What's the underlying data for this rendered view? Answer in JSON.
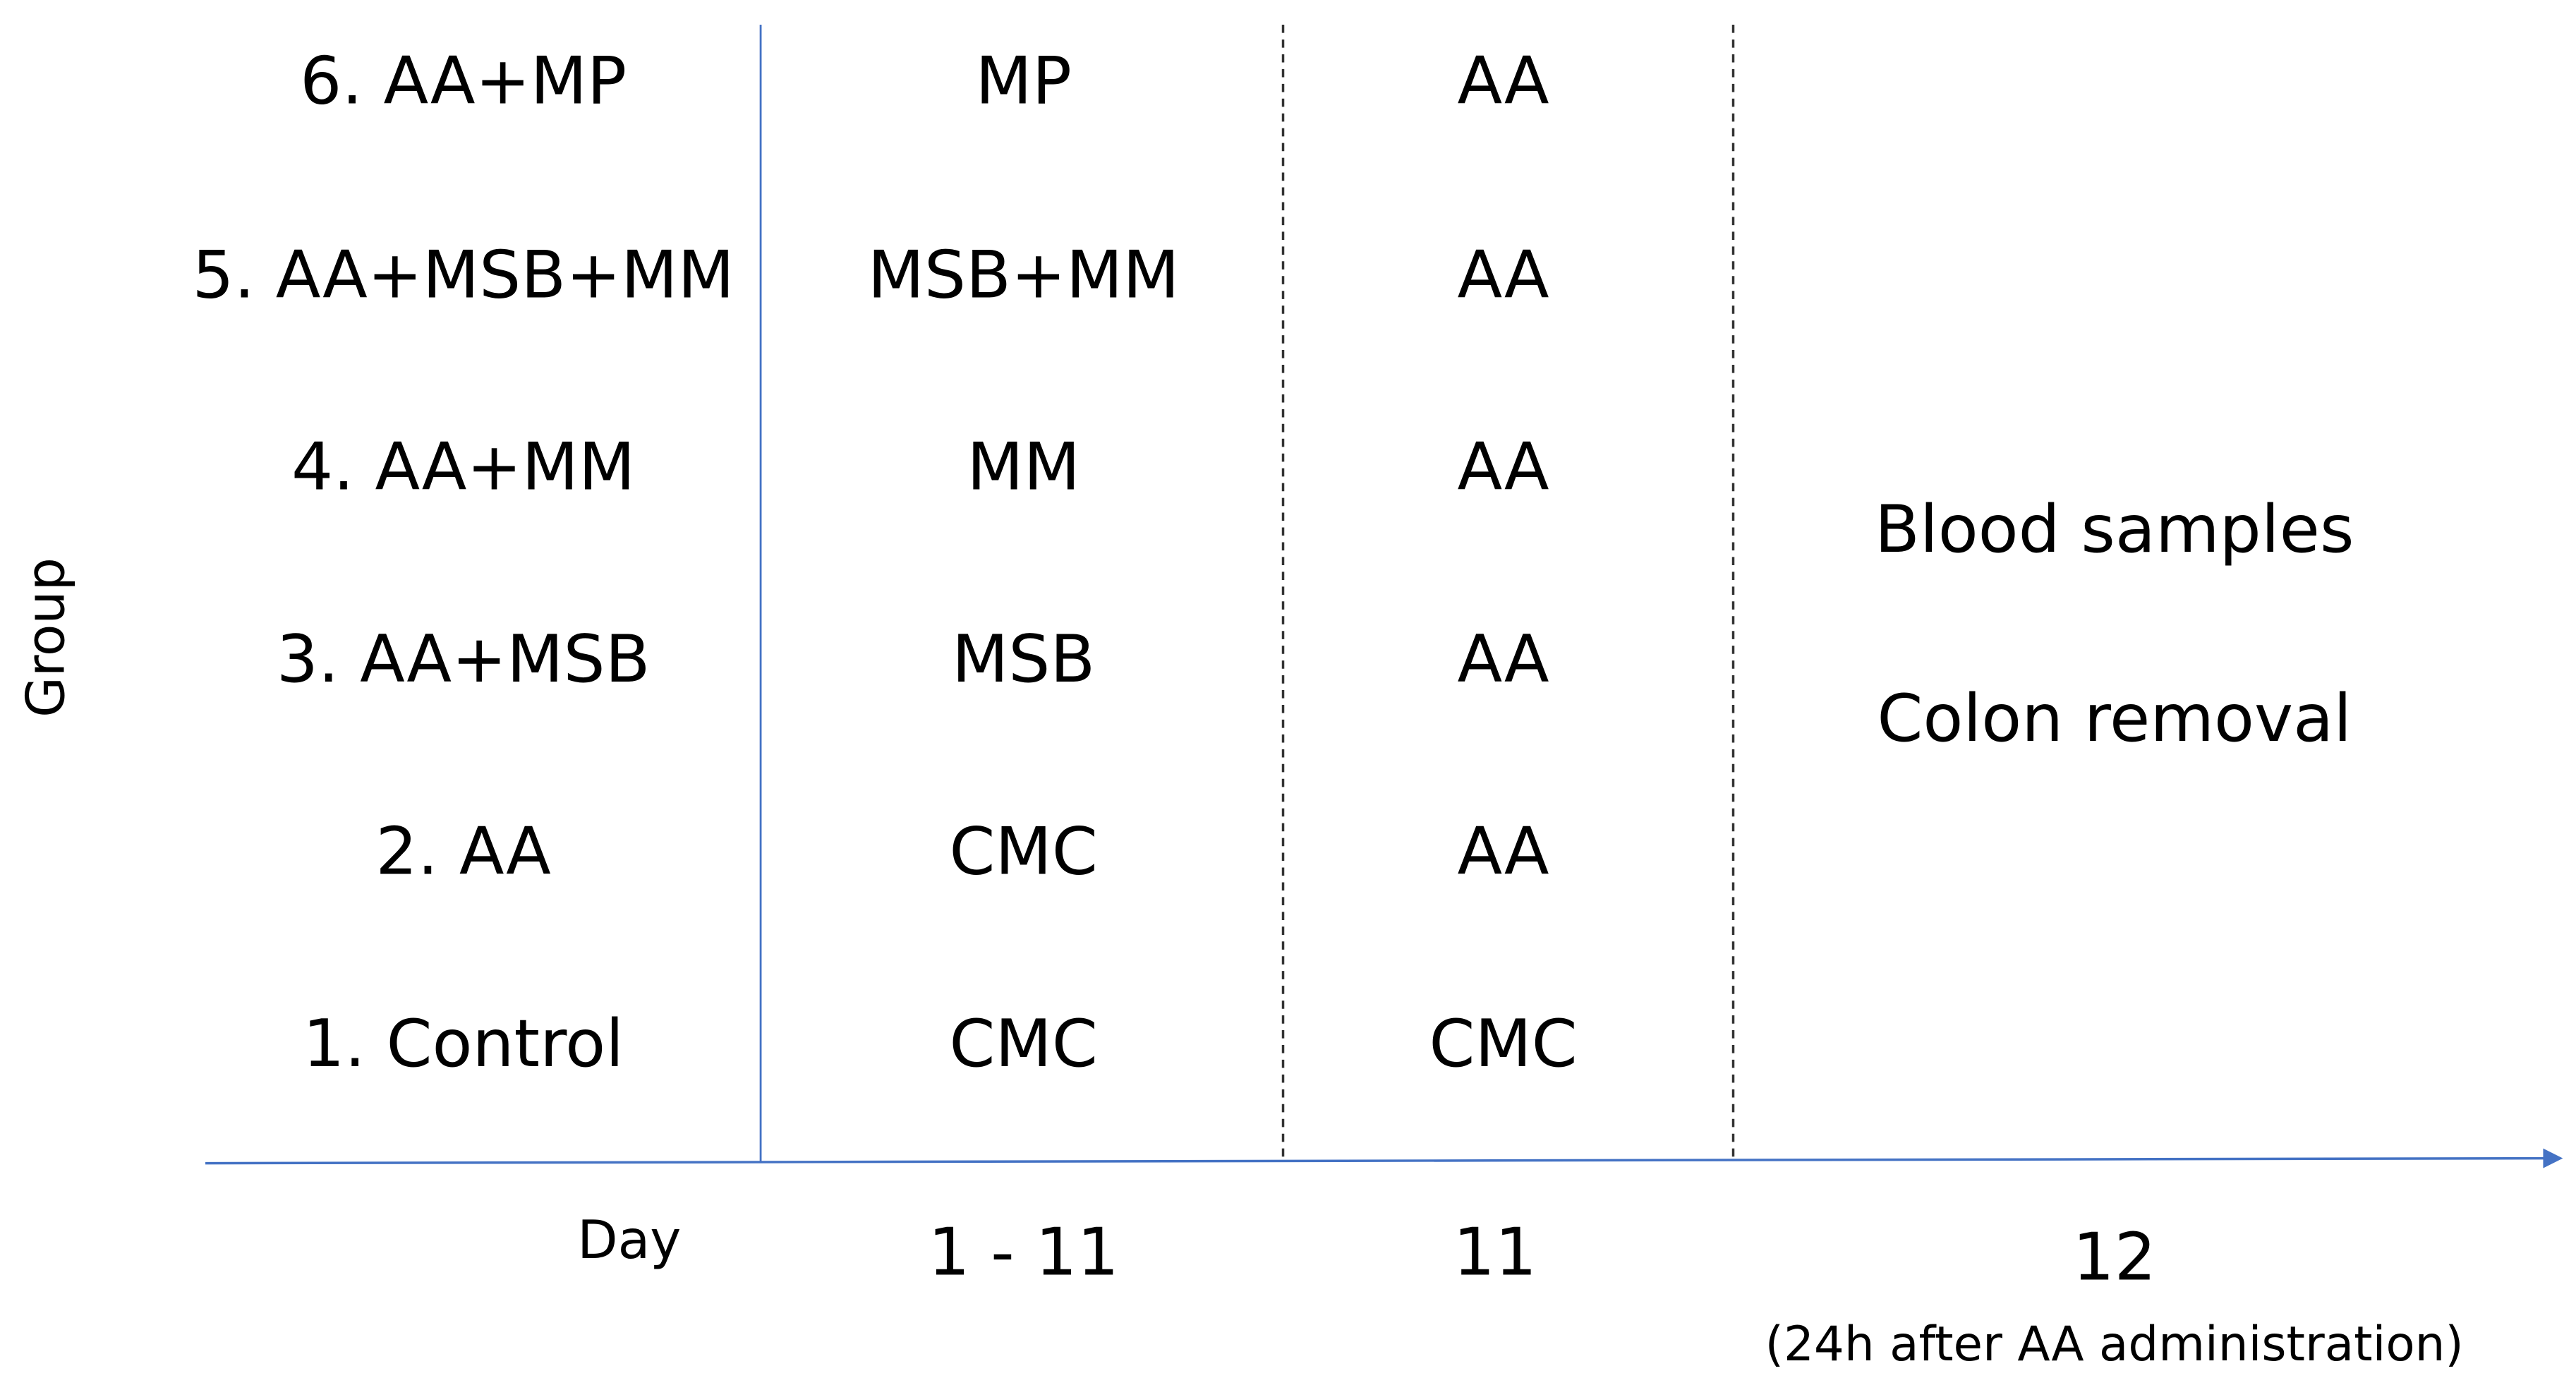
{
  "y_label": "Group",
  "x_label": "Day",
  "groups": [
    "6. AA+MP",
    "5. AA+MSB+MM",
    "4. AA+MM",
    "3. AA+MSB",
    "2. AA",
    "1. Control"
  ],
  "rows": [
    [
      "MP",
      "AA"
    ],
    [
      "MSB+MM",
      "AA"
    ],
    [
      "MM",
      "AA"
    ],
    [
      "MSB",
      "AA"
    ],
    [
      "CMC",
      "AA"
    ],
    [
      "CMC",
      "CMC"
    ]
  ],
  "days": [
    "1 - 11",
    "11",
    "12"
  ],
  "day_note": "(24h after AA administration)",
  "outcome": [
    "Blood samples",
    "Colon removal"
  ]
}
